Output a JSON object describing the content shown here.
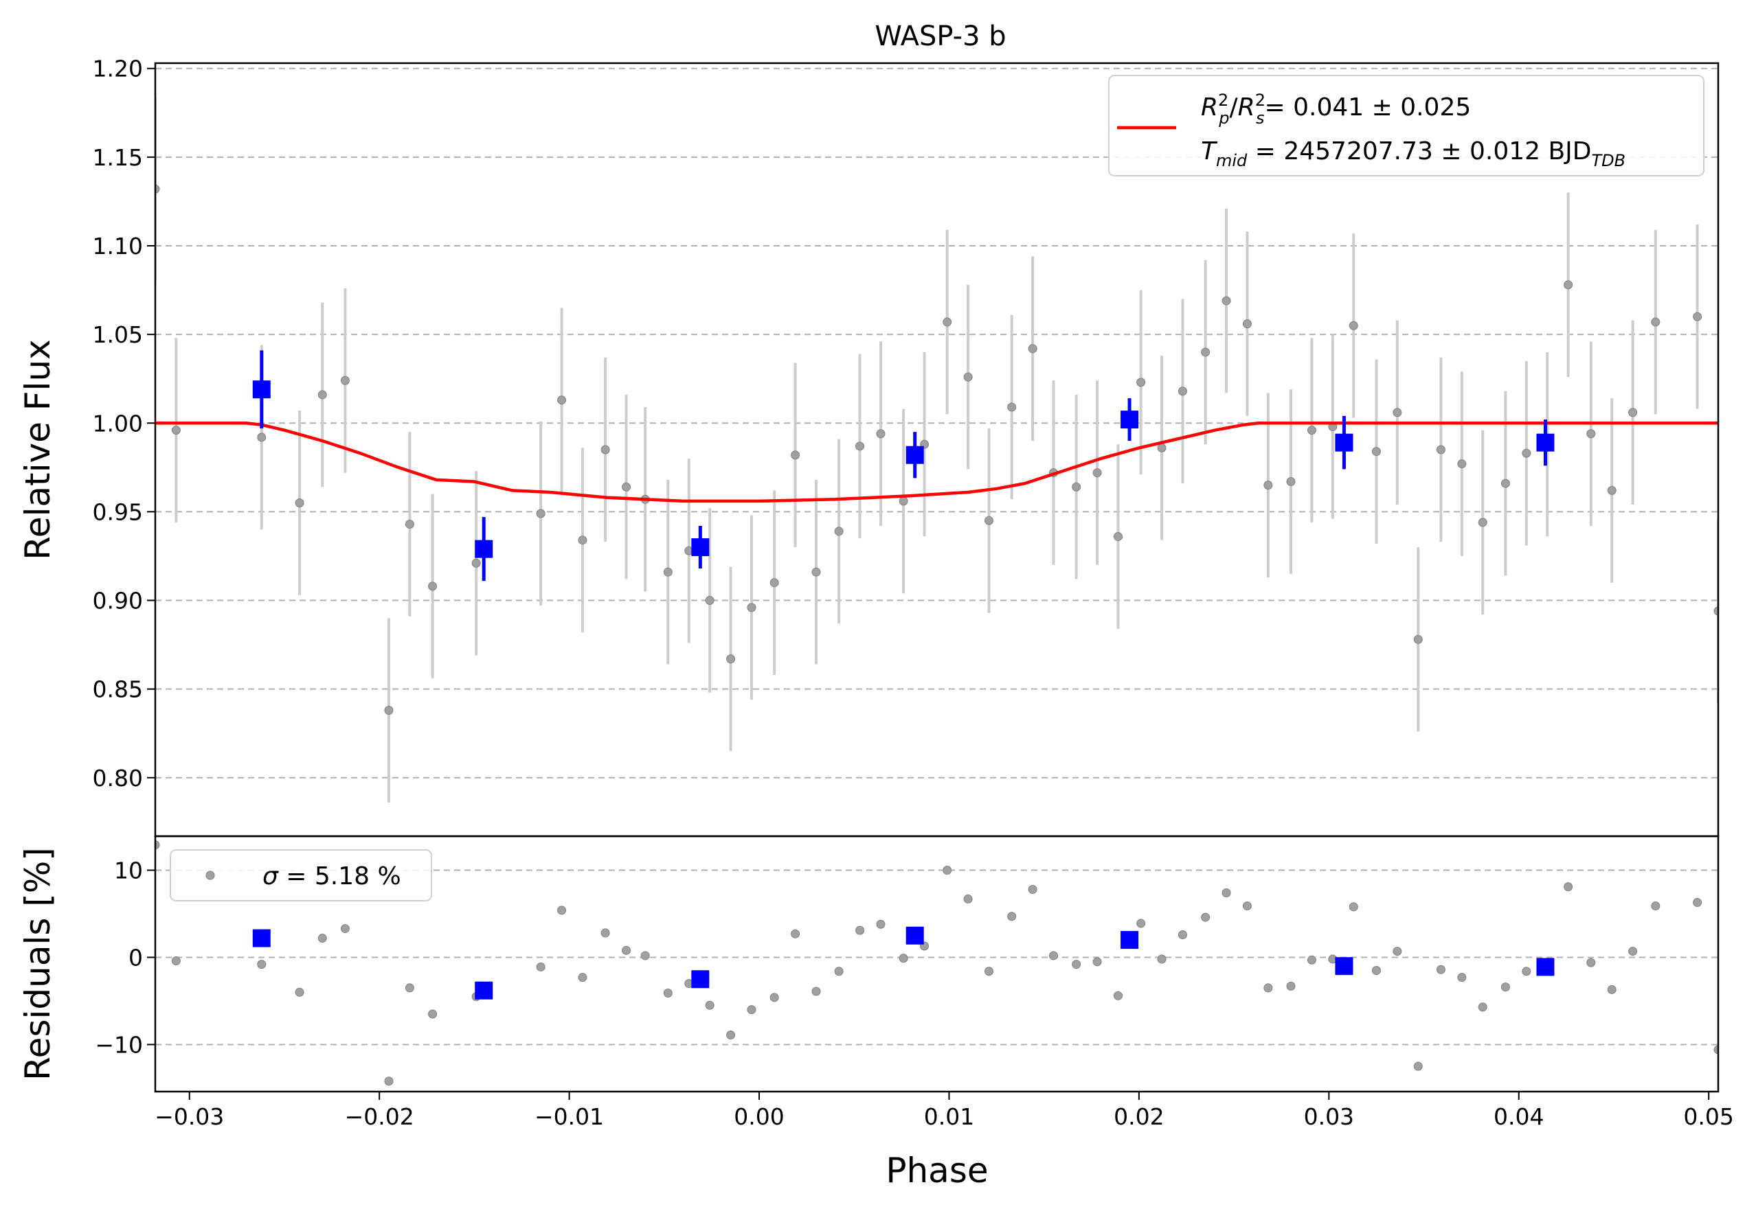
{
  "chart_data": [
    {
      "type": "scatter",
      "title": "WASP-3 b",
      "xlabel": "Phase",
      "ylabel": "Relative Flux",
      "xlim": [
        -0.0318,
        0.0505
      ],
      "ylim": [
        0.767,
        1.203
      ],
      "xticks": [
        "−0.03",
        "−0.02",
        "−0.01",
        "0.00",
        "0.01",
        "0.02",
        "0.03",
        "0.04",
        "0.05"
      ],
      "yticks": [
        "0.80",
        "0.85",
        "0.90",
        "0.95",
        "1.00",
        "1.05",
        "1.10",
        "1.15",
        "1.20"
      ],
      "grid": "horizontal dashed",
      "legend_position": "top-right",
      "legend": {
        "line1_prefix": "R",
        "line1_value": "= 0.041 ± 0.025",
        "line2_prefix": "T",
        "line2_mid": "mid",
        "line2_value": "= 2457207.73 ± 0.012 BJD",
        "line2_sub": "TDB"
      },
      "colors": {
        "data": "#a0a0a0",
        "errorbar": "#cccccc",
        "binned": "#0000ff",
        "model": "#ff0000"
      },
      "data_points": {
        "x": [
          -0.0318,
          -0.0307,
          -0.0262,
          -0.0242,
          -0.023,
          -0.0218,
          -0.0195,
          -0.0184,
          -0.0172,
          -0.0149,
          -0.0115,
          -0.0104,
          -0.0093,
          -0.0081,
          -0.007,
          -0.006,
          -0.0048,
          -0.0037,
          -0.0026,
          -0.0015,
          -0.0004,
          0.0008,
          0.0019,
          0.003,
          0.0042,
          0.0053,
          0.0064,
          0.0076,
          0.0087,
          0.0099,
          0.011,
          0.0121,
          0.0133,
          0.0144,
          0.0155,
          0.0167,
          0.0178,
          0.0189,
          0.0201,
          0.0212,
          0.0223,
          0.0235,
          0.0246,
          0.0257,
          0.0268,
          0.028,
          0.0291,
          0.0302,
          0.0313,
          0.0325,
          0.0336,
          0.0347,
          0.0359,
          0.037,
          0.0381,
          0.0393,
          0.0404,
          0.0415,
          0.0426,
          0.0438,
          0.0449,
          0.046,
          0.0472,
          0.0494,
          0.0505
        ],
        "y": [
          1.132,
          0.996,
          0.992,
          0.955,
          1.016,
          1.024,
          0.838,
          0.943,
          0.908,
          0.921,
          0.949,
          1.013,
          0.934,
          0.985,
          0.964,
          0.957,
          0.916,
          0.928,
          0.9,
          0.867,
          0.896,
          0.91,
          0.982,
          0.916,
          0.939,
          0.987,
          0.994,
          0.956,
          0.988,
          1.057,
          1.026,
          0.945,
          1.009,
          1.042,
          0.972,
          0.964,
          0.972,
          0.936,
          1.023,
          0.986,
          1.018,
          1.04,
          1.069,
          1.056,
          0.965,
          0.967,
          0.996,
          0.998,
          1.055,
          0.984,
          1.006,
          0.878,
          0.985,
          0.977,
          0.944,
          0.966,
          0.983,
          0.988,
          1.078,
          0.994,
          0.962,
          1.006,
          1.057,
          1.06,
          0.894
        ],
        "yerr": 0.052
      },
      "binned": {
        "x": [
          -0.0262,
          -0.0145,
          -0.0031,
          0.0082,
          0.0195,
          0.0308,
          0.0414
        ],
        "y": [
          1.019,
          0.929,
          0.93,
          0.982,
          1.002,
          0.989,
          0.989
        ],
        "yerr": [
          0.022,
          0.018,
          0.012,
          0.013,
          0.012,
          0.015,
          0.013
        ]
      },
      "model": {
        "x": [
          -0.0318,
          -0.027,
          -0.0262,
          -0.025,
          -0.023,
          -0.021,
          -0.019,
          -0.017,
          -0.015,
          -0.013,
          -0.011,
          -0.008,
          -0.004,
          0.0,
          0.004,
          0.008,
          0.011,
          0.0125,
          0.014,
          0.016,
          0.018,
          0.02,
          0.022,
          0.024,
          0.0255,
          0.0263,
          0.0505
        ],
        "y": [
          1.0,
          1.0,
          0.999,
          0.996,
          0.99,
          0.983,
          0.975,
          0.968,
          0.967,
          0.962,
          0.961,
          0.958,
          0.956,
          0.956,
          0.957,
          0.959,
          0.961,
          0.963,
          0.966,
          0.973,
          0.98,
          0.986,
          0.991,
          0.996,
          0.999,
          1.0,
          1.0
        ]
      }
    },
    {
      "type": "scatter",
      "xlabel": "Phase",
      "ylabel": "Residuals [%]",
      "xlim": [
        -0.0318,
        0.0505
      ],
      "ylim": [
        -15.4,
        13.9
      ],
      "yticks": [
        "−10",
        "0",
        "10"
      ],
      "grid": "horizontal dashed",
      "legend_position": "top-left",
      "legend": {
        "sigma_symbol": "σ",
        "sigma_value": "= 5.18 %"
      },
      "data_points": {
        "y": [
          12.9,
          -0.4,
          -0.8,
          -4.0,
          2.2,
          3.3,
          -14.2,
          -3.5,
          -6.5,
          -4.5,
          -1.1,
          5.4,
          -2.3,
          2.8,
          0.8,
          0.2,
          -4.1,
          -3.0,
          -5.5,
          -8.9,
          -6.0,
          -4.6,
          2.7,
          -3.9,
          -1.6,
          3.1,
          3.8,
          -0.1,
          1.3,
          10.0,
          6.7,
          -1.6,
          4.7,
          7.8,
          0.2,
          -0.8,
          -0.5,
          -4.4,
          3.9,
          -0.2,
          2.6,
          4.6,
          7.4,
          5.9,
          -3.5,
          -3.3,
          -0.3,
          -0.2,
          5.8,
          -1.5,
          0.7,
          -12.5,
          -1.4,
          -2.3,
          -5.7,
          -3.4,
          -1.6,
          -1.1,
          8.1,
          -0.6,
          -3.7,
          0.7,
          5.9,
          6.3,
          -10.6
        ]
      },
      "binned": {
        "y": [
          2.2,
          -3.8,
          -2.5,
          2.5,
          2.0,
          -1.0,
          -1.1
        ]
      }
    }
  ]
}
